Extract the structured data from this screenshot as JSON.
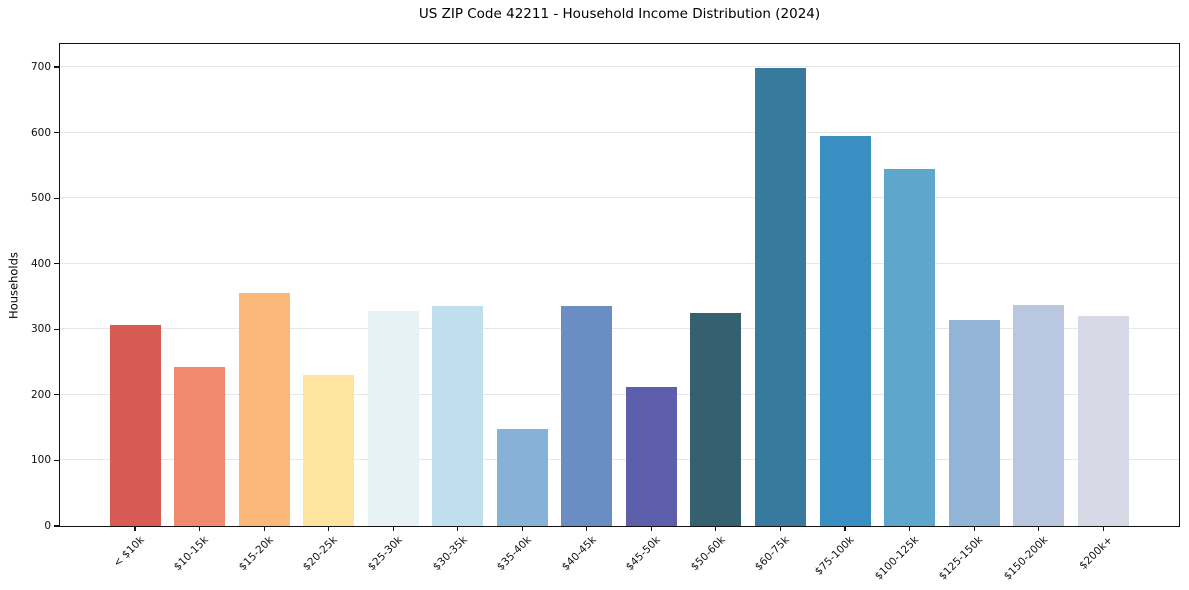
{
  "figure": {
    "title": "US ZIP Code 42211 - Household Income Distribution (2024)",
    "ylabel": "Households"
  },
  "chart_data": {
    "type": "bar",
    "title": "US ZIP Code 42211 - Household Income Distribution (2024)",
    "xlabel": "",
    "ylabel": "Households",
    "categories": [
      "< $10k",
      "$10-15k",
      "$15-20k",
      "$20-25k",
      "$25-30k",
      "$30-35k",
      "$35-40k",
      "$40-45k",
      "$45-50k",
      "$50-60k",
      "$60-75k",
      "$75-100k",
      "$100-125k",
      "$125-150k",
      "$150-200k",
      "$200k+"
    ],
    "values": [
      307,
      242,
      356,
      230,
      328,
      336,
      148,
      336,
      212,
      325,
      698,
      595,
      544,
      314,
      337,
      321
    ],
    "bar_colors": [
      "#d75b53",
      "#f08a6e",
      "#fbb878",
      "#fde5a0",
      "#e7f2f7",
      "#c0dfee",
      "#87b2d8",
      "#6a8dc3",
      "#5e5fac",
      "#35606f",
      "#377a9e",
      "#3a8fc2",
      "#5ea6cb",
      "#92b5d7",
      "#b9c8e0",
      "#d7d9e6"
    ],
    "ylim": [
      0,
      735
    ],
    "yticks": [
      0,
      100,
      200,
      300,
      400,
      500,
      600,
      700
    ],
    "grid": "horizontal-only",
    "gridline_color": "#e7e7ea",
    "background": "#ffffff",
    "x_tick_rotation_deg": 45,
    "legend": "none"
  }
}
